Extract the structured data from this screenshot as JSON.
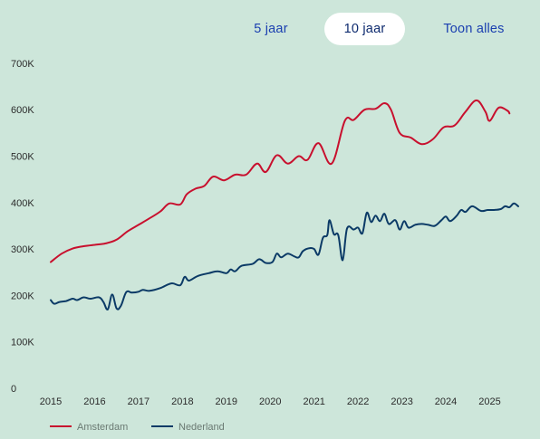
{
  "tabs": [
    {
      "label": "5 jaar",
      "active": false
    },
    {
      "label": "10 jaar",
      "active": true
    },
    {
      "label": "Toon alles",
      "active": false
    }
  ],
  "colors": {
    "amsterdam": "#c8102e",
    "nederland": "#0b3a66",
    "background": "#cde6da",
    "tab_text": "#1a3fb0"
  },
  "chart_data": {
    "type": "line",
    "y_ticks": [
      {
        "v": 0,
        "label": "0"
      },
      {
        "v": 100000,
        "label": "100K"
      },
      {
        "v": 200000,
        "label": "200K"
      },
      {
        "v": 300000,
        "label": "300K"
      },
      {
        "v": 400000,
        "label": "400K"
      },
      {
        "v": 500000,
        "label": "500K"
      },
      {
        "v": 600000,
        "label": "600K"
      },
      {
        "v": 700000,
        "label": "700K"
      }
    ],
    "x_ticks": [
      "2015",
      "2016",
      "2017",
      "2018",
      "2019",
      "2020",
      "2021",
      "2022",
      "2023",
      "2024",
      "2025"
    ],
    "xlim": [
      2015,
      2025.75
    ],
    "ylim": [
      0,
      700000
    ],
    "grid": false,
    "legend_position": "bottom-left",
    "series": [
      {
        "name": "Amsterdam",
        "color": "#c8102e",
        "points": [
          [
            2015.0,
            272000
          ],
          [
            2015.25,
            290000
          ],
          [
            2015.5,
            301000
          ],
          [
            2015.75,
            306000
          ],
          [
            2016.0,
            309000
          ],
          [
            2016.25,
            312000
          ],
          [
            2016.5,
            320000
          ],
          [
            2016.75,
            338000
          ],
          [
            2017.0,
            352000
          ],
          [
            2017.25,
            366000
          ],
          [
            2017.5,
            381000
          ],
          [
            2017.7,
            398000
          ],
          [
            2017.95,
            396000
          ],
          [
            2018.1,
            418000
          ],
          [
            2018.3,
            430000
          ],
          [
            2018.5,
            436000
          ],
          [
            2018.7,
            456000
          ],
          [
            2018.95,
            448000
          ],
          [
            2019.2,
            460000
          ],
          [
            2019.45,
            460000
          ],
          [
            2019.7,
            484000
          ],
          [
            2019.9,
            466000
          ],
          [
            2020.15,
            502000
          ],
          [
            2020.4,
            484000
          ],
          [
            2020.65,
            500000
          ],
          [
            2020.85,
            492000
          ],
          [
            2021.1,
            528000
          ],
          [
            2021.4,
            484000
          ],
          [
            2021.7,
            576000
          ],
          [
            2021.9,
            578000
          ],
          [
            2022.15,
            600000
          ],
          [
            2022.4,
            602000
          ],
          [
            2022.6,
            614000
          ],
          [
            2022.75,
            600000
          ],
          [
            2022.95,
            550000
          ],
          [
            2023.2,
            540000
          ],
          [
            2023.45,
            526000
          ],
          [
            2023.7,
            536000
          ],
          [
            2023.95,
            562000
          ],
          [
            2024.2,
            566000
          ],
          [
            2024.45,
            596000
          ],
          [
            2024.7,
            620000
          ],
          [
            2024.9,
            596000
          ],
          [
            2025.0,
            576000
          ],
          [
            2025.2,
            604000
          ],
          [
            2025.4,
            598000
          ],
          [
            2025.45,
            592000
          ]
        ]
      },
      {
        "name": "Nederland",
        "color": "#0b3a66",
        "points": [
          [
            2015.0,
            190000
          ],
          [
            2015.08,
            182000
          ],
          [
            2015.2,
            186000
          ],
          [
            2015.35,
            188000
          ],
          [
            2015.5,
            193000
          ],
          [
            2015.6,
            190000
          ],
          [
            2015.75,
            196000
          ],
          [
            2015.9,
            193000
          ],
          [
            2016.1,
            196000
          ],
          [
            2016.2,
            186000
          ],
          [
            2016.3,
            170000
          ],
          [
            2016.4,
            202000
          ],
          [
            2016.5,
            172000
          ],
          [
            2016.6,
            178000
          ],
          [
            2016.72,
            207000
          ],
          [
            2016.85,
            206000
          ],
          [
            2017.0,
            208000
          ],
          [
            2017.1,
            212000
          ],
          [
            2017.25,
            210000
          ],
          [
            2017.5,
            216000
          ],
          [
            2017.75,
            226000
          ],
          [
            2017.95,
            222000
          ],
          [
            2018.05,
            240000
          ],
          [
            2018.15,
            232000
          ],
          [
            2018.35,
            242000
          ],
          [
            2018.6,
            248000
          ],
          [
            2018.8,
            252000
          ],
          [
            2019.0,
            248000
          ],
          [
            2019.1,
            256000
          ],
          [
            2019.2,
            252000
          ],
          [
            2019.35,
            264000
          ],
          [
            2019.6,
            268000
          ],
          [
            2019.75,
            278000
          ],
          [
            2019.9,
            270000
          ],
          [
            2020.05,
            272000
          ],
          [
            2020.15,
            290000
          ],
          [
            2020.25,
            282000
          ],
          [
            2020.4,
            290000
          ],
          [
            2020.55,
            284000
          ],
          [
            2020.65,
            282000
          ],
          [
            2020.75,
            296000
          ],
          [
            2020.9,
            302000
          ],
          [
            2021.0,
            300000
          ],
          [
            2021.1,
            288000
          ],
          [
            2021.2,
            324000
          ],
          [
            2021.3,
            330000
          ],
          [
            2021.35,
            362000
          ],
          [
            2021.45,
            332000
          ],
          [
            2021.55,
            330000
          ],
          [
            2021.65,
            276000
          ],
          [
            2021.75,
            344000
          ],
          [
            2021.9,
            342000
          ],
          [
            2022.0,
            346000
          ],
          [
            2022.1,
            334000
          ],
          [
            2022.2,
            378000
          ],
          [
            2022.3,
            358000
          ],
          [
            2022.4,
            372000
          ],
          [
            2022.5,
            360000
          ],
          [
            2022.6,
            376000
          ],
          [
            2022.7,
            354000
          ],
          [
            2022.85,
            362000
          ],
          [
            2022.95,
            342000
          ],
          [
            2023.05,
            360000
          ],
          [
            2023.15,
            346000
          ],
          [
            2023.3,
            352000
          ],
          [
            2023.45,
            354000
          ],
          [
            2023.6,
            352000
          ],
          [
            2023.75,
            350000
          ],
          [
            2023.9,
            362000
          ],
          [
            2024.0,
            370000
          ],
          [
            2024.1,
            360000
          ],
          [
            2024.25,
            372000
          ],
          [
            2024.35,
            384000
          ],
          [
            2024.45,
            380000
          ],
          [
            2024.6,
            392000
          ],
          [
            2024.8,
            382000
          ],
          [
            2024.95,
            384000
          ],
          [
            2025.1,
            384000
          ],
          [
            2025.25,
            386000
          ],
          [
            2025.35,
            392000
          ],
          [
            2025.45,
            390000
          ],
          [
            2025.55,
            398000
          ],
          [
            2025.65,
            392000
          ]
        ]
      }
    ]
  }
}
